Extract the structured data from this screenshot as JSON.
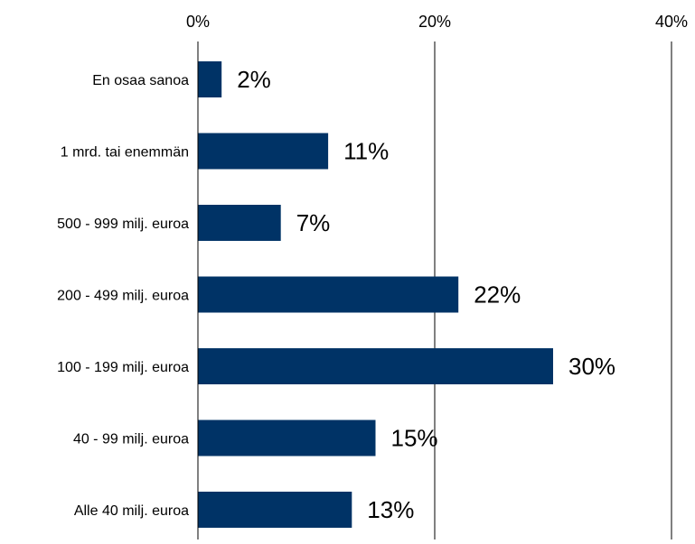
{
  "chart_data": {
    "type": "bar",
    "orientation": "horizontal",
    "categories": [
      "En osaa sanoa",
      "1 mrd. tai enemmän",
      "500 - 999 milj. euroa",
      "200 - 499 milj. euroa",
      "100 - 199 milj. euroa",
      "40 - 99 milj. euroa",
      "Alle 40 milj. euroa"
    ],
    "values": [
      2,
      11,
      7,
      22,
      30,
      15,
      13
    ],
    "data_labels": [
      "2%",
      "11%",
      "7%",
      "22%",
      "30%",
      "15%",
      "13%"
    ],
    "x_ticks": [
      0,
      20,
      40
    ],
    "x_tick_labels": [
      "0%",
      "20%",
      "40%"
    ],
    "xlim": [
      0,
      40
    ],
    "x_axis_position": "top",
    "grid": true,
    "legend": "none",
    "bar_color": "#003366",
    "title": "",
    "xlabel": "",
    "ylabel": ""
  }
}
